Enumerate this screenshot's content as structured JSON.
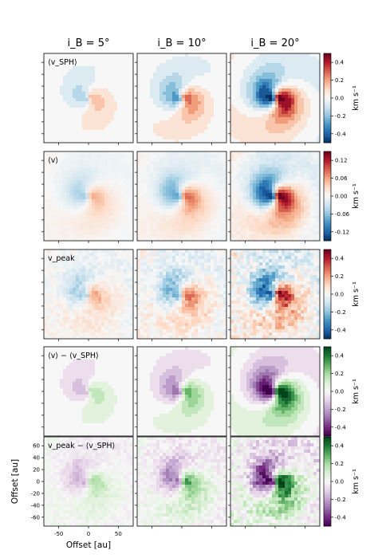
{
  "chart_data": {
    "type": "heatmap",
    "columns": [
      {
        "label": "i_B = 5°",
        "inclination_deg": 5
      },
      {
        "label": "i_B = 10°",
        "inclination_deg": 10
      },
      {
        "label": "i_B = 20°",
        "inclination_deg": 20
      }
    ],
    "rows": [
      {
        "label": "⟨v_SPH⟩",
        "colormap": "RdBu_r",
        "vlim": [
          -0.4,
          0.4
        ],
        "cbar_ticks": [
          "0.4",
          "0.2",
          "0.0",
          "-0.2",
          "-0.4"
        ],
        "unit": "km s⁻¹",
        "amplitude": [
          0.12,
          0.22,
          0.4
        ],
        "speckle": 0,
        "rings": 0,
        "banded": true
      },
      {
        "label": "⟨v⟩",
        "colormap": "RdBu_r",
        "vlim": [
          -0.15,
          0.15
        ],
        "cbar_ticks": [
          "0.12",
          "0.06",
          "0.00",
          "-0.06",
          "-0.12"
        ],
        "unit": "km s⁻¹",
        "amplitude": [
          0.05,
          0.08,
          0.14
        ],
        "speckle": 0.1,
        "rings": 0.15,
        "banded": false
      },
      {
        "label": "v_peak",
        "colormap": "RdBu_r",
        "vlim": [
          -0.4,
          0.4
        ],
        "cbar_ticks": [
          "0.4",
          "0.2",
          "0.0",
          "-0.2",
          "-0.4"
        ],
        "unit": "km s⁻¹",
        "amplitude": [
          0.14,
          0.2,
          0.32
        ],
        "speckle": 0.45,
        "rings": 0.35,
        "banded": false
      },
      {
        "label": "⟨v⟩ − ⟨v_SPH⟩",
        "colormap": "PRGn",
        "vlim": [
          -0.4,
          0.4
        ],
        "cbar_ticks": [
          "0.4",
          "0.2",
          "0.0",
          "-0.2",
          "-0.4"
        ],
        "unit": "km s⁻¹",
        "amplitude": [
          0.12,
          0.22,
          0.42
        ],
        "speckle": 0,
        "rings": 0,
        "banded": true
      },
      {
        "label": "v_peak − ⟨v_SPH⟩",
        "colormap": "PRGn",
        "vlim": [
          -0.4,
          0.4
        ],
        "cbar_ticks": [
          "0.4",
          "0.2",
          "0.0",
          "-0.2",
          "-0.4"
        ],
        "unit": "km s⁻¹",
        "amplitude": [
          0.14,
          0.22,
          0.38
        ],
        "speckle": 0.4,
        "rings": 0.3,
        "banded": false
      }
    ],
    "xlabel": "Offset [au]",
    "ylabel": "Offset [au]",
    "xlim": [
      -75,
      75
    ],
    "ylim": [
      -75,
      75
    ],
    "xticks": [
      -50,
      0,
      50
    ],
    "yticks": [
      60,
      40,
      20,
      0,
      -20,
      -40,
      -60
    ]
  }
}
